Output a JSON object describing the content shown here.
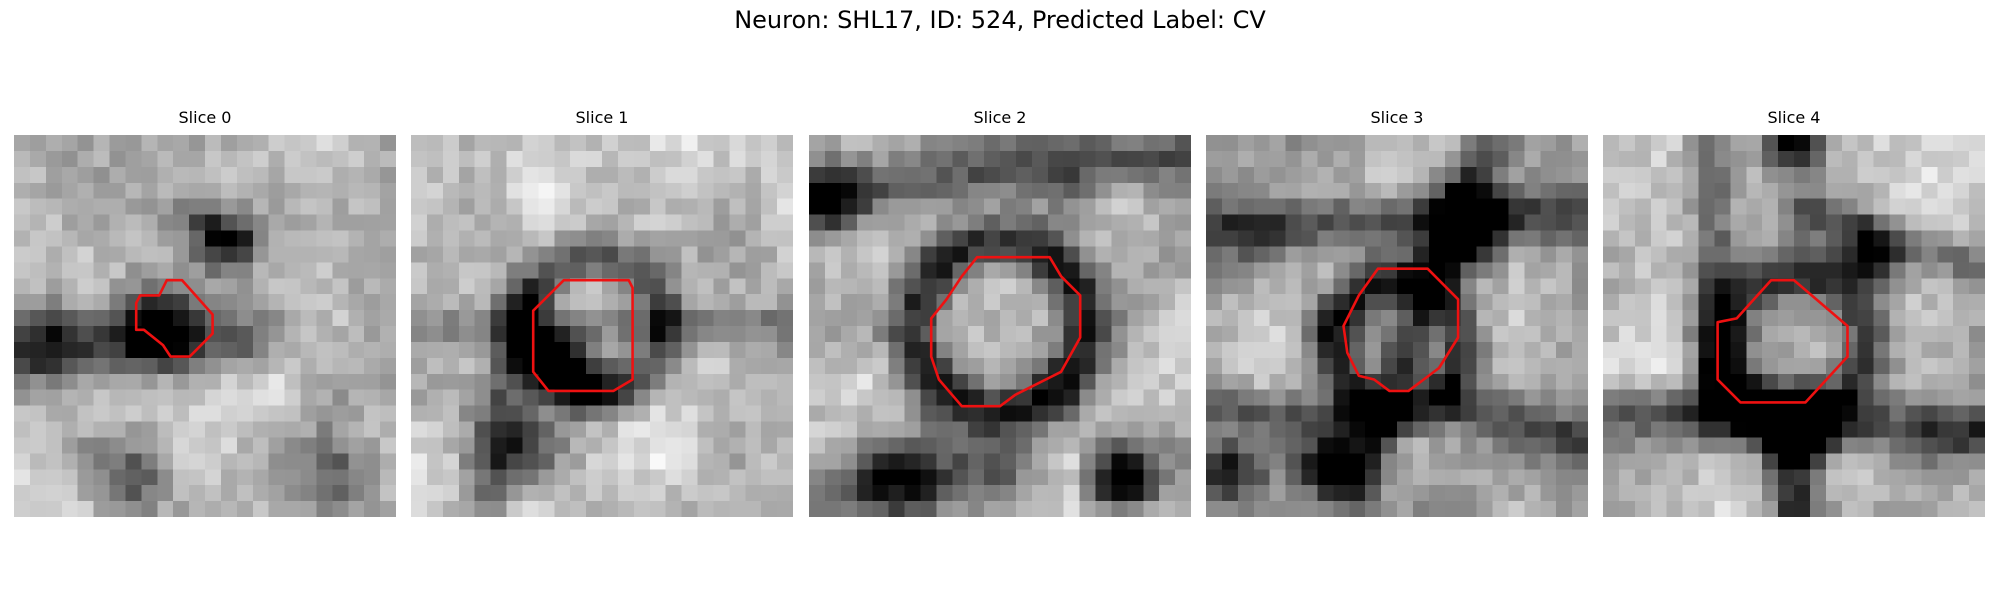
{
  "title": "Neuron: SHL17, ID: 524, Predicted Label: CV",
  "panels": [
    {
      "title": "Slice 0"
    },
    {
      "title": "Slice 1"
    },
    {
      "title": "Slice 2"
    },
    {
      "title": "Slice 3"
    },
    {
      "title": "Slice 4"
    }
  ],
  "colors": {
    "contour": "#ee1111",
    "background": "#ffffff",
    "text": "#000000"
  },
  "image_style": "grayscale pixelated electron-microscopy crop with red segmentation contour"
}
